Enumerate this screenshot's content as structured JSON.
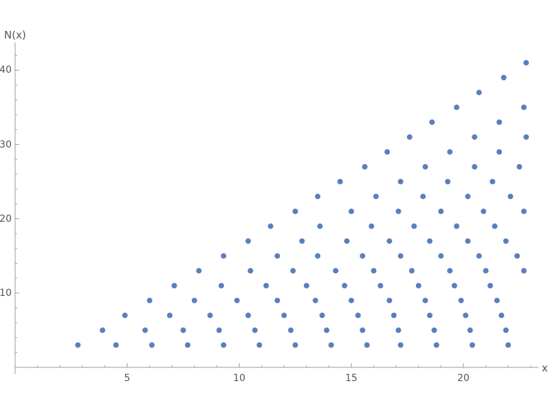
{
  "chart_data": {
    "type": "scatter",
    "title": "",
    "xlabel": "x",
    "ylabel": "N(x)",
    "xlim": [
      0,
      23.3
    ],
    "ylim": [
      0,
      43
    ],
    "x_ticks": [
      "5",
      "10",
      "15",
      "20"
    ],
    "y_ticks": [
      "10",
      "20",
      "30",
      "40"
    ],
    "grid": false,
    "point_color": "#5a7fbf",
    "series": [
      {
        "points": [
          [
            2.8,
            3
          ],
          [
            4.5,
            3
          ],
          [
            6.1,
            3
          ],
          [
            7.7,
            3
          ],
          [
            9.3,
            3
          ],
          [
            10.9,
            3
          ],
          [
            12.5,
            3
          ],
          [
            14.1,
            3
          ],
          [
            15.7,
            3
          ],
          [
            17.2,
            3
          ],
          [
            18.8,
            3
          ],
          [
            20.4,
            3
          ],
          [
            22.0,
            3
          ],
          [
            3.9,
            5
          ],
          [
            5.8,
            5
          ],
          [
            7.5,
            5
          ],
          [
            9.1,
            5
          ],
          [
            10.7,
            5
          ],
          [
            12.3,
            5
          ],
          [
            13.9,
            5
          ],
          [
            15.5,
            5
          ],
          [
            17.1,
            5
          ],
          [
            18.7,
            5
          ],
          [
            20.3,
            5
          ],
          [
            21.9,
            5
          ],
          [
            4.9,
            7
          ],
          [
            6.9,
            7
          ],
          [
            8.7,
            7
          ],
          [
            10.4,
            7
          ],
          [
            12.0,
            7
          ],
          [
            13.7,
            7
          ],
          [
            15.3,
            7
          ],
          [
            16.9,
            7
          ],
          [
            18.5,
            7
          ],
          [
            20.1,
            7
          ],
          [
            21.7,
            7
          ],
          [
            6.0,
            9
          ],
          [
            8.0,
            9
          ],
          [
            9.9,
            9
          ],
          [
            11.7,
            9
          ],
          [
            13.4,
            9
          ],
          [
            15.0,
            9
          ],
          [
            16.7,
            9
          ],
          [
            18.3,
            9
          ],
          [
            19.9,
            9
          ],
          [
            21.5,
            9
          ],
          [
            7.1,
            11
          ],
          [
            9.2,
            11
          ],
          [
            11.2,
            11
          ],
          [
            13.0,
            11
          ],
          [
            14.7,
            11
          ],
          [
            16.3,
            11
          ],
          [
            18.0,
            11
          ],
          [
            19.6,
            11
          ],
          [
            21.2,
            11
          ],
          [
            8.2,
            13
          ],
          [
            10.5,
            13
          ],
          [
            12.4,
            13
          ],
          [
            14.3,
            13
          ],
          [
            16.0,
            13
          ],
          [
            17.7,
            13
          ],
          [
            19.4,
            13
          ],
          [
            21.0,
            13
          ],
          [
            22.7,
            13
          ],
          [
            9.3,
            15
          ],
          [
            11.7,
            15
          ],
          [
            13.5,
            15
          ],
          [
            15.5,
            15
          ],
          [
            17.2,
            15
          ],
          [
            19.0,
            15
          ],
          [
            20.7,
            15
          ],
          [
            22.4,
            15
          ],
          [
            10.4,
            17
          ],
          [
            12.8,
            17
          ],
          [
            14.8,
            17
          ],
          [
            16.7,
            17
          ],
          [
            18.5,
            17
          ],
          [
            20.2,
            17
          ],
          [
            21.9,
            17
          ],
          [
            11.4,
            19
          ],
          [
            13.6,
            19
          ],
          [
            15.9,
            19
          ],
          [
            17.8,
            19
          ],
          [
            19.7,
            19
          ],
          [
            21.4,
            19
          ],
          [
            12.5,
            21
          ],
          [
            15.0,
            21
          ],
          [
            17.1,
            21
          ],
          [
            19.0,
            21
          ],
          [
            20.9,
            21
          ],
          [
            22.7,
            21
          ],
          [
            13.5,
            23
          ],
          [
            16.1,
            23
          ],
          [
            18.2,
            23
          ],
          [
            20.2,
            23
          ],
          [
            22.1,
            23
          ],
          [
            14.5,
            25
          ],
          [
            17.2,
            25
          ],
          [
            19.3,
            25
          ],
          [
            21.3,
            25
          ],
          [
            15.6,
            27
          ],
          [
            18.3,
            27
          ],
          [
            20.5,
            27
          ],
          [
            22.5,
            27
          ],
          [
            16.6,
            29
          ],
          [
            19.4,
            29
          ],
          [
            21.6,
            29
          ],
          [
            17.6,
            31
          ],
          [
            20.5,
            31
          ],
          [
            22.8,
            31
          ],
          [
            18.6,
            33
          ],
          [
            21.6,
            33
          ],
          [
            19.7,
            35
          ],
          [
            22.7,
            35
          ],
          [
            20.7,
            37
          ],
          [
            21.8,
            39
          ],
          [
            22.8,
            41
          ]
        ]
      }
    ]
  }
}
